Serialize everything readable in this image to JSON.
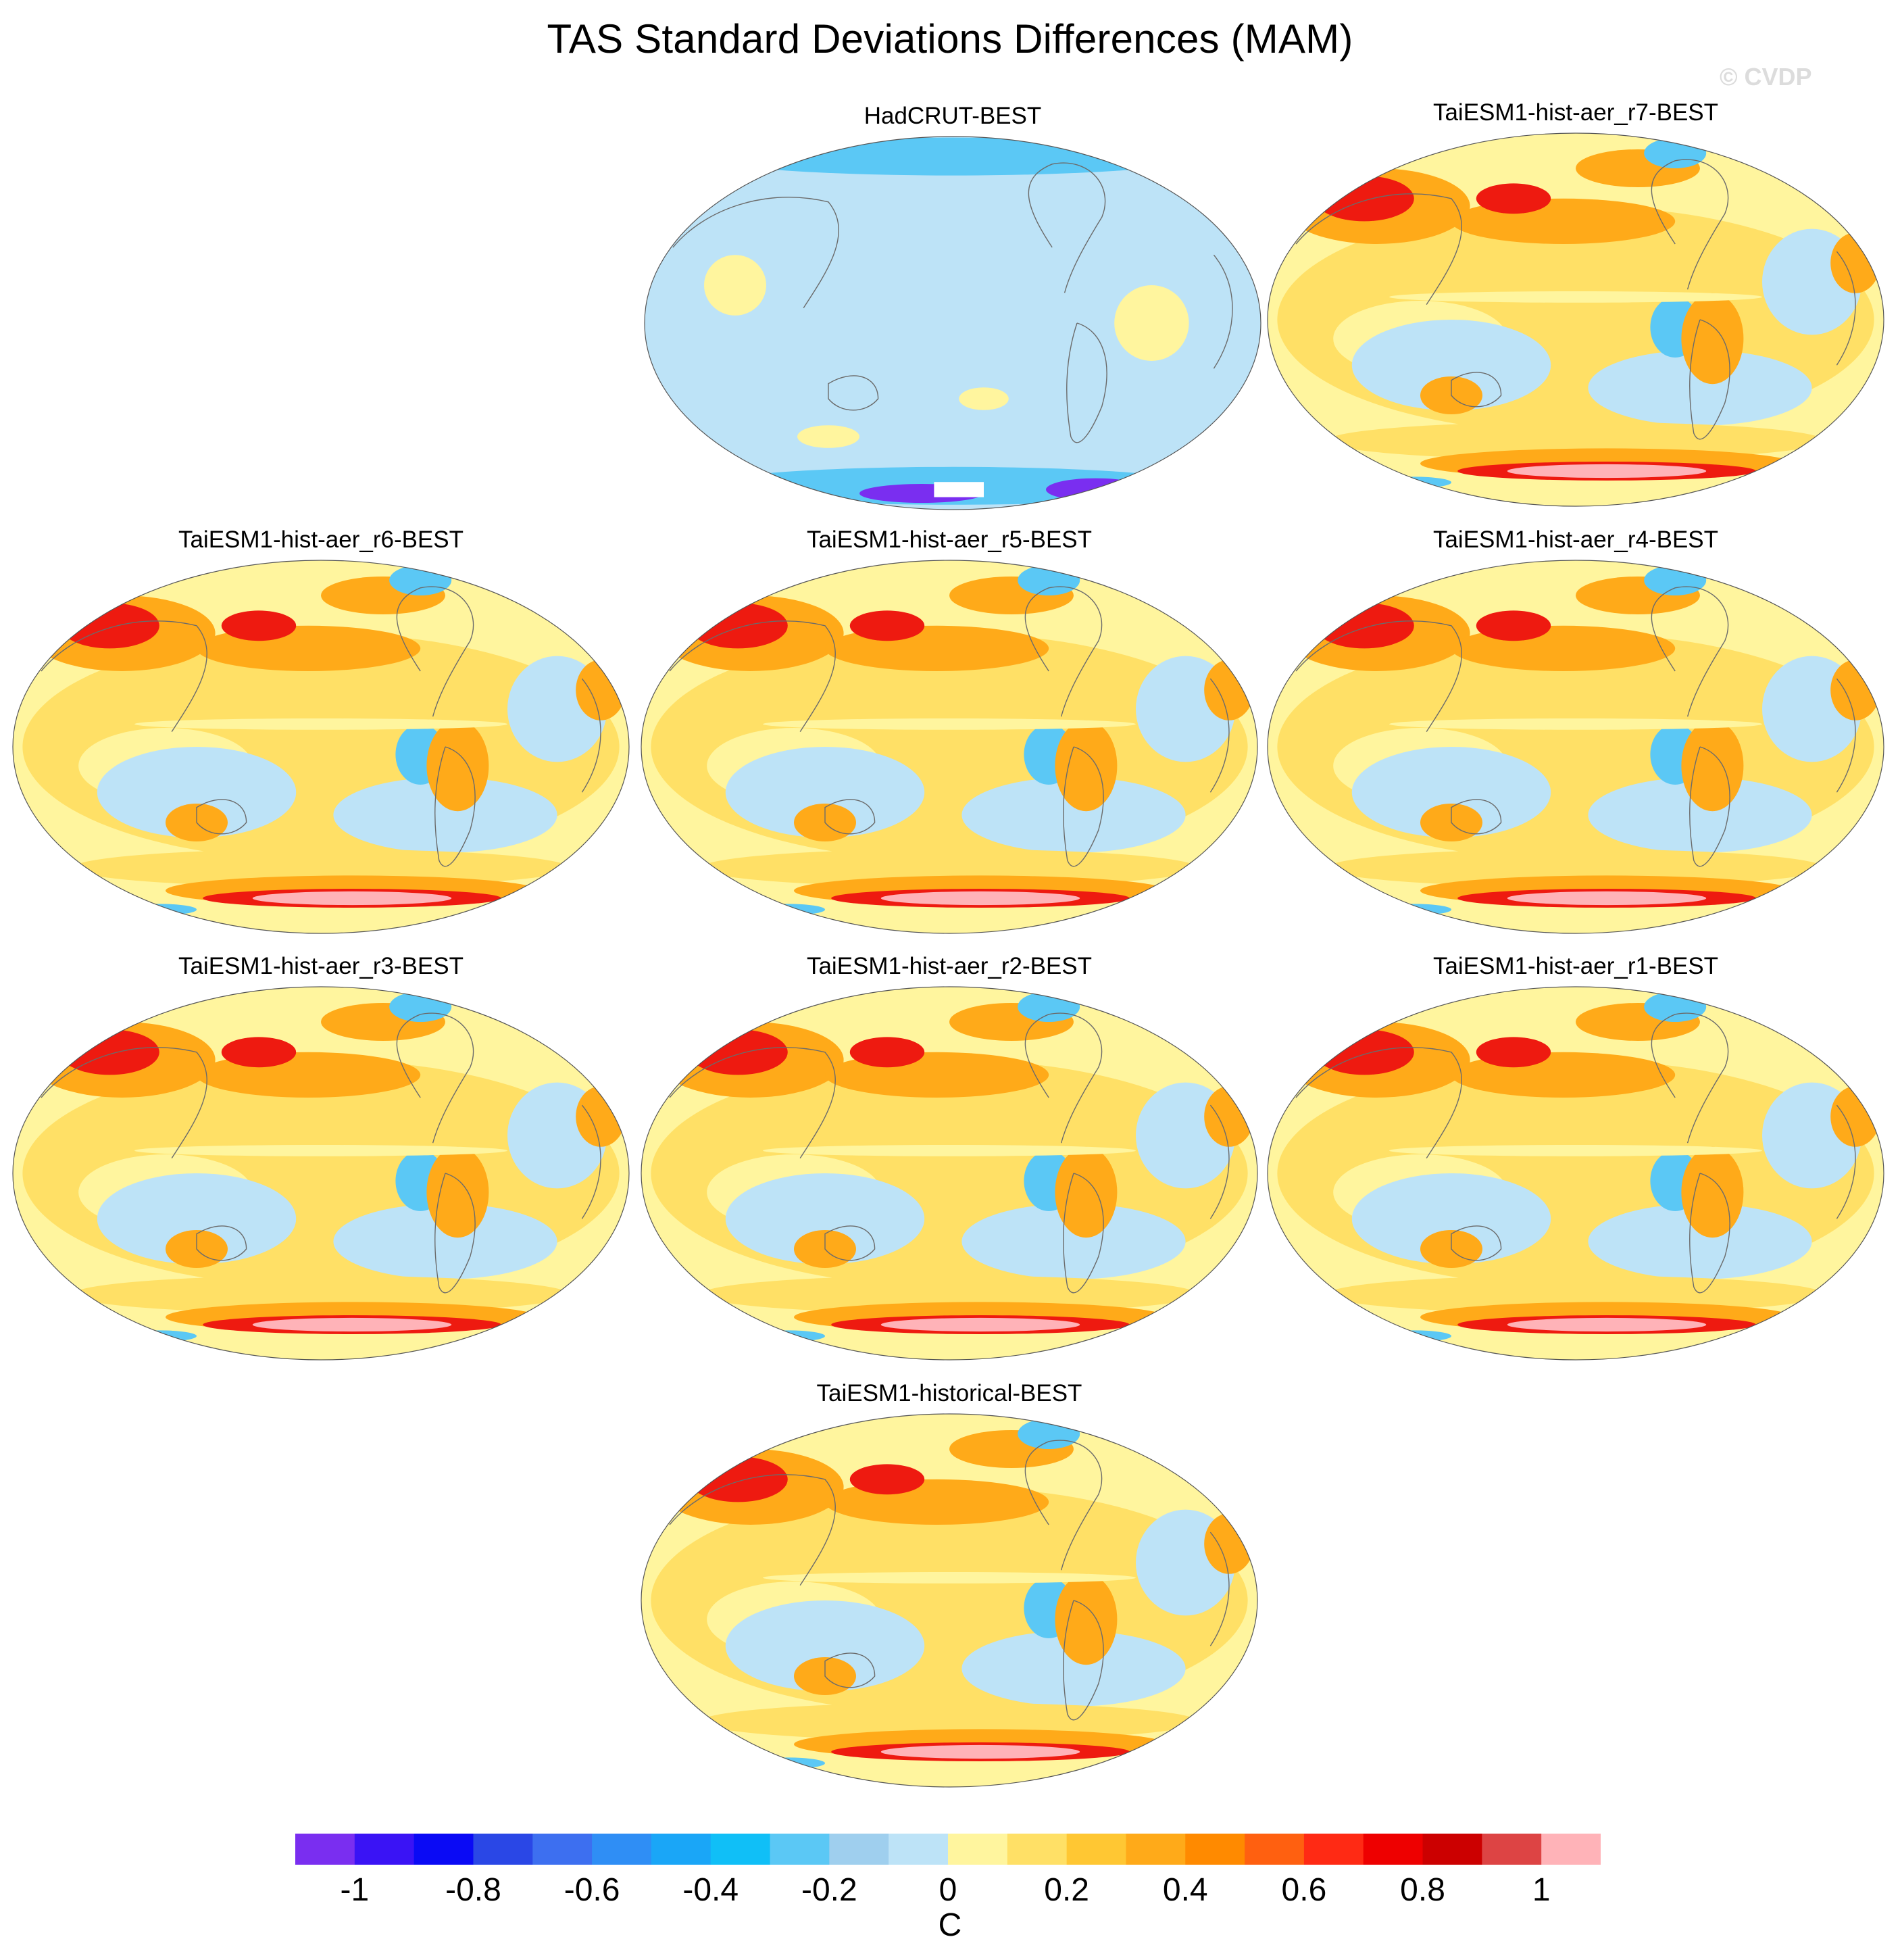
{
  "title": "TAS Standard Deviations Differences (MAM)",
  "watermark": "© CVDP",
  "panels": [
    {
      "title": "HadCRUT-BEST",
      "style": "obs"
    },
    {
      "title": "TaiESM1-hist-aer_r7-BEST",
      "style": "model"
    },
    {
      "title": "TaiESM1-hist-aer_r6-BEST",
      "style": "model"
    },
    {
      "title": "TaiESM1-hist-aer_r5-BEST",
      "style": "model"
    },
    {
      "title": "TaiESM1-hist-aer_r4-BEST",
      "style": "model"
    },
    {
      "title": "TaiESM1-hist-aer_r3-BEST",
      "style": "model"
    },
    {
      "title": "TaiESM1-hist-aer_r2-BEST",
      "style": "model"
    },
    {
      "title": "TaiESM1-hist-aer_r1-BEST",
      "style": "model"
    },
    {
      "title": "TaiESM1-historical-BEST",
      "style": "model"
    }
  ],
  "colorbar": {
    "unit": "C",
    "labels": [
      "-1",
      "-0.8",
      "-0.6",
      "-0.4",
      "-0.2",
      "0",
      "0.2",
      "0.4",
      "0.6",
      "0.8",
      "1"
    ],
    "colors": [
      "#7a2ef0",
      "#3a13f5",
      "#0a0af5",
      "#2a47e6",
      "#3d6ff0",
      "#2f8ef5",
      "#1aa6f7",
      "#10bff7",
      "#5bc8f5",
      "#9fcfee",
      "#bde3f7",
      "#fff59e",
      "#ffe066",
      "#ffc733",
      "#ffaa19",
      "#ff8a00",
      "#ff6010",
      "#ff2a14",
      "#ee0000",
      "#cc0000",
      "#dd4444",
      "#ffb3b8"
    ]
  },
  "map_palette": {
    "land_outline": "#6b6b6b",
    "ocean_light_blue": "#bde3f7",
    "light_yellow": "#fff59e",
    "yellow": "#ffe066",
    "orange": "#ffaa19",
    "red": "#ee1a10",
    "pink": "#ffb3b8",
    "blue": "#5bc8f5",
    "dark_blue": "#2a47e6",
    "purple": "#7a2ef0"
  }
}
